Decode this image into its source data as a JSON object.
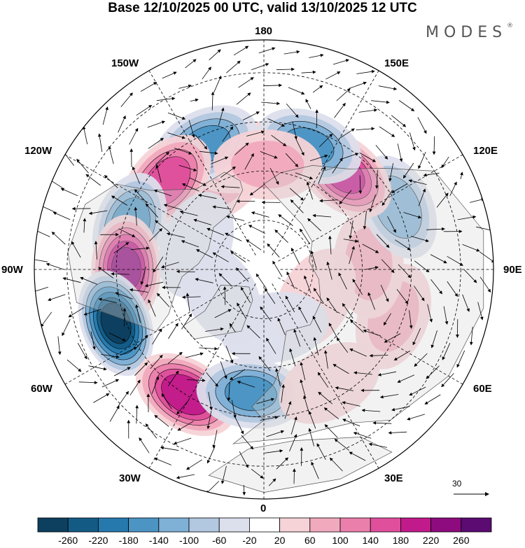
{
  "title": "Base 12/10/2025 00 UTC, valid 13/10/2025 12 UTC",
  "brand": {
    "name": "MODES",
    "mark": "®"
  },
  "longitude_labels": {
    "lon_180": "180",
    "lon_150e": "150E",
    "lon_120e": "120E",
    "lon_90e": "90E",
    "lon_60e": "60E",
    "lon_30e": "30E",
    "lon_0": "0",
    "lon_30w": "30W",
    "lon_60w": "60W",
    "lon_90w": "90W",
    "lon_120w": "120W",
    "lon_150w": "150W"
  },
  "reference_vector": {
    "label": "30"
  },
  "colorbar": {
    "labels": [
      "-260",
      "-220",
      "-180",
      "-140",
      "-100",
      "-60",
      "-20",
      "20",
      "60",
      "100",
      "140",
      "180",
      "220",
      "260"
    ],
    "colors": [
      "#0d3f5e",
      "#135b85",
      "#2679ad",
      "#4b94c4",
      "#7fb0d6",
      "#b2c7e0",
      "#dcdfec",
      "#ffffff",
      "#f6d3d7",
      "#f1a9bd",
      "#eb7fac",
      "#e04f9c",
      "#c11b8b",
      "#8d0b7e",
      "#5b0b72"
    ]
  },
  "anomaly_centers": [
    {
      "lon": -150,
      "lat": 60,
      "v": 60
    },
    {
      "lon": -168,
      "lat": 55,
      "v": 80
    },
    {
      "lon": -155,
      "lat": 48,
      "v": -140
    },
    {
      "lon": -132,
      "lat": 50,
      "v": 160
    },
    {
      "lon": -108,
      "lat": 47,
      "v": -160
    },
    {
      "lon": -90,
      "lat": 48,
      "v": 220
    },
    {
      "lon": -70,
      "lat": 42,
      "v": -260
    },
    {
      "lon": -32,
      "lat": 45,
      "v": 200
    },
    {
      "lon": -6,
      "lat": 52,
      "v": -140
    },
    {
      "lon": 30,
      "lat": 50,
      "v": 40
    },
    {
      "lon": 70,
      "lat": 48,
      "v": 60
    },
    {
      "lon": 93,
      "lat": 58,
      "v": 60
    },
    {
      "lon": 115,
      "lat": 45,
      "v": -120
    },
    {
      "lon": 140,
      "lat": 52,
      "v": 180
    },
    {
      "lon": 160,
      "lat": 50,
      "v": -140
    },
    {
      "lon": 178,
      "lat": 58,
      "v": 60
    },
    {
      "lon": 60,
      "lat": 72,
      "v": 20
    },
    {
      "lon": -60,
      "lat": 75,
      "v": -40
    },
    {
      "lon": -110,
      "lat": 68,
      "v": -30
    },
    {
      "lon": 10,
      "lat": 72,
      "v": -20
    }
  ]
}
